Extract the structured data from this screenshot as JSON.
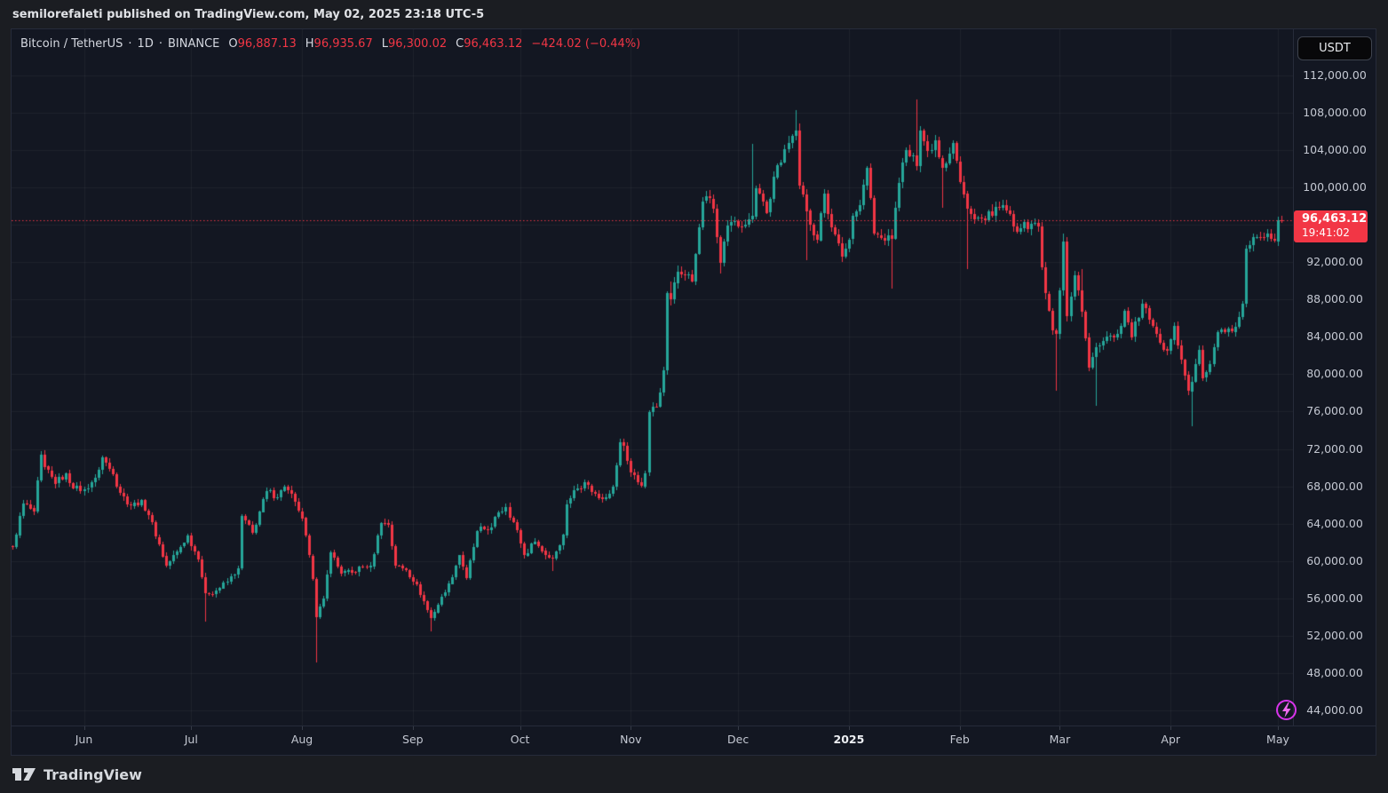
{
  "page": {
    "publish_line": "semilorefaleti published on TradingView.com, May 02, 2025 23:18 UTC-5",
    "brand": "TradingView"
  },
  "legend": {
    "symbol": "Bitcoin / TetherUS",
    "separator": "·",
    "interval": "1D",
    "exchange": "BINANCE",
    "open_label": "O",
    "open": "96,887.13",
    "high_label": "H",
    "high": "96,935.67",
    "low_label": "L",
    "low": "96,300.02",
    "close_label": "C",
    "close": "96,463.12",
    "change": "−424.02 (−0.44%)"
  },
  "price_axis": {
    "currency_button": "USDT",
    "last_price_label": "96,463.12",
    "countdown": "19:41:02",
    "labels": [
      {
        "text": "112,000.00",
        "value": 112000
      },
      {
        "text": "108,000.00",
        "value": 108000
      },
      {
        "text": "104,000.00",
        "value": 104000
      },
      {
        "text": "100,000.00",
        "value": 100000
      },
      {
        "text": "92,000.00",
        "value": 92000
      },
      {
        "text": "88,000.00",
        "value": 88000
      },
      {
        "text": "84,000.00",
        "value": 84000
      },
      {
        "text": "80,000.00",
        "value": 80000
      },
      {
        "text": "76,000.00",
        "value": 76000
      },
      {
        "text": "72,000.00",
        "value": 72000
      },
      {
        "text": "68,000.00",
        "value": 68000
      },
      {
        "text": "64,000.00",
        "value": 64000
      },
      {
        "text": "60,000.00",
        "value": 60000
      },
      {
        "text": "56,000.00",
        "value": 56000
      },
      {
        "text": "52,000.00",
        "value": 52000
      },
      {
        "text": "48,000.00",
        "value": 48000
      },
      {
        "text": "44,000.00",
        "value": 44000
      }
    ]
  },
  "time_axis": {
    "labels": [
      {
        "text": "Jun",
        "day": 20,
        "bold": false
      },
      {
        "text": "Jul",
        "day": 50,
        "bold": false
      },
      {
        "text": "Aug",
        "day": 81,
        "bold": false
      },
      {
        "text": "Sep",
        "day": 112,
        "bold": false
      },
      {
        "text": "Oct",
        "day": 142,
        "bold": false
      },
      {
        "text": "Nov",
        "day": 173,
        "bold": false
      },
      {
        "text": "Dec",
        "day": 203,
        "bold": false
      },
      {
        "text": "2025",
        "day": 234,
        "bold": true
      },
      {
        "text": "Feb",
        "day": 265,
        "bold": false
      },
      {
        "text": "Mar",
        "day": 293,
        "bold": false
      },
      {
        "text": "Apr",
        "day": 324,
        "bold": false
      },
      {
        "text": "May",
        "day": 354,
        "bold": false
      }
    ]
  },
  "colors": {
    "up": "#26a69a",
    "down": "#f23645",
    "badge": "#f23645",
    "background": "#131722",
    "grid": "rgba(240,244,255,0.05)",
    "axis_text": "#c4c8d2",
    "accent_purple": "#d834eb"
  },
  "chart_data": {
    "type": "candlestick",
    "title": "Bitcoin / TetherUS · 1D · BINANCE",
    "symbol": "BTC/USDT",
    "timeframe": "1D",
    "day0_date": "2024-05-12",
    "days": 355,
    "date_range": "May 12, 2024 – May 02, 2025",
    "last": {
      "open": 96887.13,
      "high": 96935.67,
      "low": 96300.02,
      "close": 96463.12,
      "change": -424.02,
      "change_pct": -0.44
    },
    "last_price_line": 96463.12,
    "price_scale": {
      "min": 42400,
      "max": 116900,
      "gridline_values": [
        112000,
        108000,
        104000,
        100000,
        96000,
        92000,
        88000,
        84000,
        80000,
        76000,
        72000,
        68000,
        64000,
        60000,
        56000,
        52000,
        48000,
        44000
      ]
    },
    "close_keypoints": [
      [
        0,
        61500
      ],
      [
        3,
        66200
      ],
      [
        6,
        65300
      ],
      [
        8,
        71400
      ],
      [
        9,
        70100
      ],
      [
        12,
        68300
      ],
      [
        15,
        69400
      ],
      [
        17,
        67800
      ],
      [
        20,
        67700
      ],
      [
        23,
        68900
      ],
      [
        25,
        71100
      ],
      [
        28,
        69300
      ],
      [
        30,
        67300
      ],
      [
        33,
        65900
      ],
      [
        36,
        66500
      ],
      [
        38,
        64900
      ],
      [
        41,
        61800
      ],
      [
        43,
        59500
      ],
      [
        46,
        61000
      ],
      [
        49,
        62700
      ],
      [
        52,
        60200
      ],
      [
        54,
        56600
      ],
      [
        57,
        56800
      ],
      [
        60,
        57800
      ],
      [
        63,
        59200
      ],
      [
        64,
        64800
      ],
      [
        67,
        63000
      ],
      [
        71,
        67500
      ],
      [
        74,
        66800
      ],
      [
        76,
        68000
      ],
      [
        79,
        66300
      ],
      [
        81,
        64600
      ],
      [
        84,
        58100
      ],
      [
        85,
        54000
      ],
      [
        87,
        56000
      ],
      [
        89,
        60900
      ],
      [
        92,
        58700
      ],
      [
        95,
        58800
      ],
      [
        98,
        59400
      ],
      [
        100,
        59500
      ],
      [
        103,
        64100
      ],
      [
        105,
        63900
      ],
      [
        107,
        59500
      ],
      [
        110,
        59000
      ],
      [
        113,
        57500
      ],
      [
        117,
        53900
      ],
      [
        120,
        56200
      ],
      [
        122,
        57600
      ],
      [
        125,
        60600
      ],
      [
        127,
        58200
      ],
      [
        130,
        63200
      ],
      [
        134,
        63600
      ],
      [
        136,
        65200
      ],
      [
        138,
        65800
      ],
      [
        141,
        63300
      ],
      [
        143,
        60600
      ],
      [
        146,
        62100
      ],
      [
        149,
        60600
      ],
      [
        151,
        60300
      ],
      [
        154,
        62800
      ],
      [
        155,
        66100
      ],
      [
        157,
        67600
      ],
      [
        160,
        68400
      ],
      [
        162,
        67400
      ],
      [
        165,
        66600
      ],
      [
        168,
        68000
      ],
      [
        170,
        72700
      ],
      [
        171,
        72300
      ],
      [
        173,
        69500
      ],
      [
        176,
        68000
      ],
      [
        177,
        69400
      ],
      [
        178,
        75900
      ],
      [
        180,
        76500
      ],
      [
        182,
        80400
      ],
      [
        183,
        88700
      ],
      [
        184,
        88000
      ],
      [
        186,
        91000
      ],
      [
        188,
        90600
      ],
      [
        190,
        89900
      ],
      [
        193,
        98500
      ],
      [
        194,
        99000
      ],
      [
        196,
        97700
      ],
      [
        198,
        91900
      ],
      [
        200,
        95900
      ],
      [
        202,
        96400
      ],
      [
        204,
        95800
      ],
      [
        207,
        96900
      ],
      [
        208,
        99900
      ],
      [
        211,
        97300
      ],
      [
        213,
        101100
      ],
      [
        216,
        104100
      ],
      [
        219,
        106100
      ],
      [
        220,
        100200
      ],
      [
        222,
        97500
      ],
      [
        225,
        94300
      ],
      [
        227,
        99300
      ],
      [
        229,
        95700
      ],
      [
        232,
        92600
      ],
      [
        234,
        94400
      ],
      [
        235,
        96900
      ],
      [
        237,
        98100
      ],
      [
        239,
        102100
      ],
      [
        241,
        95000
      ],
      [
        244,
        94300
      ],
      [
        246,
        94500
      ],
      [
        248,
        100500
      ],
      [
        250,
        104000
      ],
      [
        253,
        102300
      ],
      [
        254,
        106100
      ],
      [
        256,
        103900
      ],
      [
        258,
        105000
      ],
      [
        260,
        102100
      ],
      [
        263,
        104700
      ],
      [
        265,
        100600
      ],
      [
        267,
        97700
      ],
      [
        269,
        96600
      ],
      [
        272,
        96500
      ],
      [
        275,
        97900
      ],
      [
        278,
        97500
      ],
      [
        280,
        95800
      ],
      [
        282,
        95600
      ],
      [
        285,
        96100
      ],
      [
        287,
        95800
      ],
      [
        288,
        91400
      ],
      [
        289,
        88600
      ],
      [
        291,
        84700
      ],
      [
        292,
        84300
      ],
      [
        294,
        94200
      ],
      [
        295,
        86200
      ],
      [
        297,
        90600
      ],
      [
        299,
        86700
      ],
      [
        301,
        80700
      ],
      [
        303,
        82900
      ],
      [
        306,
        84000
      ],
      [
        309,
        84300
      ],
      [
        311,
        86800
      ],
      [
        313,
        84000
      ],
      [
        316,
        87500
      ],
      [
        318,
        85800
      ],
      [
        320,
        84300
      ],
      [
        323,
        82500
      ],
      [
        325,
        85200
      ],
      [
        326,
        83100
      ],
      [
        329,
        78200
      ],
      [
        330,
        79200
      ],
      [
        332,
        82600
      ],
      [
        333,
        79600
      ],
      [
        335,
        81100
      ],
      [
        337,
        84500
      ],
      [
        340,
        84900
      ],
      [
        342,
        85100
      ],
      [
        344,
        87500
      ],
      [
        345,
        93400
      ],
      [
        348,
        94700
      ],
      [
        351,
        95000
      ],
      [
        353,
        94200
      ],
      [
        354,
        96500
      ],
      [
        355,
        96463
      ]
    ],
    "wick_extremes": [
      [
        54,
        "L",
        53500
      ],
      [
        85,
        "L",
        49100
      ],
      [
        117,
        "L",
        52500
      ],
      [
        151,
        "L",
        58900
      ],
      [
        184,
        "H",
        89900
      ],
      [
        194,
        "H",
        99600
      ],
      [
        198,
        "L",
        90800
      ],
      [
        207,
        "H",
        104600
      ],
      [
        219,
        "H",
        108300
      ],
      [
        222,
        "L",
        92200
      ],
      [
        246,
        "L",
        89200
      ],
      [
        253,
        "H",
        109350
      ],
      [
        260,
        "L",
        97800
      ],
      [
        267,
        "L",
        91200
      ],
      [
        292,
        "L",
        78200
      ],
      [
        294,
        "H",
        95000
      ],
      [
        299,
        "H",
        91200
      ],
      [
        303,
        "L",
        76600
      ],
      [
        330,
        "L",
        74400
      ],
      [
        355,
        "H",
        96936
      ]
    ]
  }
}
